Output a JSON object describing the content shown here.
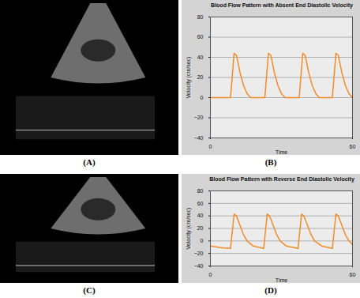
{
  "chart_data": [
    {
      "type": "line",
      "title": "Blood Flow Pattern with Absent End Diastolic Velocity",
      "x_label": "Time",
      "y_label": "Velocity (cm/sec)",
      "color": "#f28c28",
      "x": [
        0,
        8.5,
        10,
        11,
        12.5,
        14,
        15.5,
        17,
        23,
        24.5,
        25.5,
        27,
        28.5,
        30,
        31.5,
        37.5,
        39,
        40,
        41.5,
        43,
        44.5,
        46,
        51.5,
        53,
        54,
        55.5,
        57,
        58.5,
        60
      ],
      "values": [
        0,
        0,
        44,
        42,
        25,
        12,
        4,
        0,
        0,
        44,
        42,
        25,
        12,
        4,
        0,
        0,
        44,
        42,
        25,
        12,
        4,
        0,
        0,
        44,
        42,
        25,
        12,
        4,
        0
      ],
      "xlim": [
        0,
        60
      ],
      "xticks": [
        0,
        60
      ],
      "ylim": [
        -40,
        80
      ],
      "yticks": [
        -40,
        -20,
        0,
        20,
        40,
        60,
        80
      ],
      "grid": true
    },
    {
      "type": "line",
      "title": "Blood Flow Pattern with Reverse End Diastolic Velocity",
      "x_label": "Time",
      "y_label": "Velocity (cm/sec)",
      "color": "#f28c28",
      "x": [
        0,
        5,
        8.5,
        10,
        11,
        12.5,
        14,
        15.5,
        18,
        22.5,
        24,
        25,
        26.5,
        28,
        29.5,
        32,
        37,
        38.5,
        39.5,
        41,
        42.5,
        44,
        47,
        51.5,
        53,
        54,
        55.5,
        57,
        58.5,
        60
      ],
      "values": [
        -8,
        -11,
        -12,
        43,
        40,
        25,
        10,
        0,
        -8,
        -12,
        43,
        40,
        25,
        10,
        0,
        -8,
        -12,
        43,
        40,
        25,
        10,
        0,
        -8,
        -12,
        43,
        40,
        25,
        10,
        0,
        -6
      ],
      "xlim": [
        0,
        60
      ],
      "xticks": [
        0,
        60
      ],
      "ylim": [
        -40,
        80
      ],
      "yticks": [
        -40,
        -20,
        0,
        20,
        40,
        60,
        80
      ],
      "grid": true
    }
  ],
  "panel_labels": [
    "(A)",
    "(B)",
    "(C)",
    "(D)"
  ]
}
